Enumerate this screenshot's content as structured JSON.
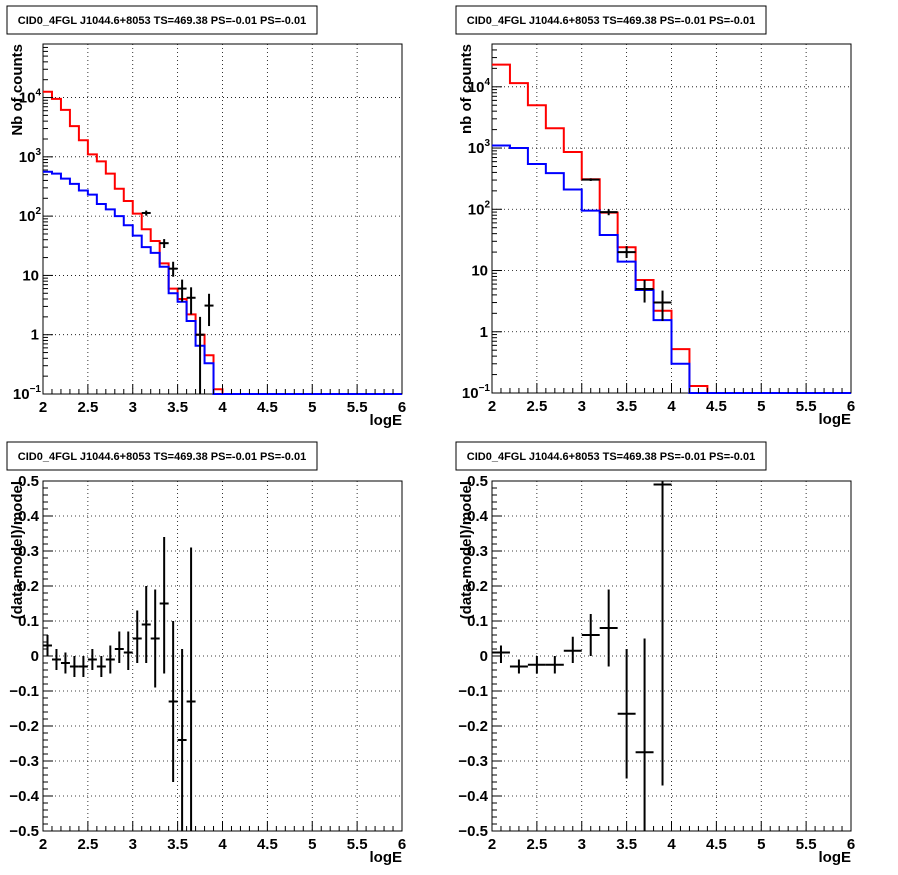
{
  "chart_data": [
    {
      "type": "line",
      "title": "CID0_4FGL J1044.6+8053 TS=469.38 PS=-0.01 PS=-0.01",
      "xlabel": "logE",
      "ylabel": "Nb of counts",
      "ylog": true,
      "xlim": [
        2,
        6
      ],
      "ylim": [
        0.1,
        80000
      ],
      "xticks": [
        "2",
        "2.5",
        "3",
        "3.5",
        "4",
        "4.5",
        "5",
        "5.5",
        "6"
      ],
      "yticks": [
        {
          "v": 0.1,
          "label": "10",
          "sup": "−1"
        },
        {
          "v": 1,
          "label": "1"
        },
        {
          "v": 10,
          "label": "10"
        },
        {
          "v": 100,
          "label": "10",
          "sup": "2"
        },
        {
          "v": 1000,
          "label": "10",
          "sup": "3"
        },
        {
          "v": 10000,
          "label": "10",
          "sup": "4"
        }
      ],
      "grid": true,
      "bin_edges": [
        2.0,
        2.1,
        2.2,
        2.3,
        2.4,
        2.5,
        2.6,
        2.7,
        2.8,
        2.9,
        3.0,
        3.1,
        3.2,
        3.3,
        3.4,
        3.5,
        3.6,
        3.7,
        3.8,
        3.9,
        4.0,
        4.1,
        4.2,
        4.3,
        4.4,
        4.5,
        4.6,
        4.7,
        4.8,
        4.9,
        5.0,
        5.1,
        5.2,
        5.3,
        5.4,
        5.5,
        5.6,
        5.7,
        5.8,
        5.9,
        6.0
      ],
      "series": [
        {
          "color": "#ff0000",
          "values": [
            12500,
            9500,
            6200,
            3300,
            1900,
            1100,
            840,
            520,
            290,
            180,
            110,
            60,
            38,
            16,
            6,
            4,
            2.2,
            1.0,
            0.45,
            0.12,
            0.09,
            0.09,
            0.09,
            0.09,
            0.09,
            0.09,
            0.09,
            0.09,
            0.09,
            0.09,
            0.09,
            0.09,
            0.09,
            0.09,
            0.09,
            0.09,
            0.09,
            0.09,
            0.09,
            0.09
          ]
        },
        {
          "color": "#0000ff",
          "values": [
            560,
            520,
            430,
            350,
            270,
            230,
            160,
            130,
            100,
            70,
            47,
            30,
            24,
            14,
            5,
            3.6,
            1.7,
            0.65,
            0.33,
            0.1,
            0.09,
            0.09,
            0.09,
            0.09,
            0.09,
            0.09,
            0.09,
            0.09,
            0.09,
            0.09,
            0.09,
            0.09,
            0.09,
            0.09,
            0.09,
            0.09,
            0.09,
            0.09,
            0.09,
            0.09
          ]
        }
      ],
      "points": [
        {
          "x": 3.15,
          "y": 113,
          "xerr": 0.05,
          "lo": 102,
          "hi": 124
        },
        {
          "x": 3.35,
          "y": 35,
          "xerr": 0.05,
          "lo": 29,
          "hi": 41
        },
        {
          "x": 3.45,
          "y": 13,
          "xerr": 0.05,
          "lo": 9.5,
          "hi": 17
        },
        {
          "x": 3.55,
          "y": 6,
          "xerr": 0.05,
          "lo": 3.6,
          "hi": 8.5
        },
        {
          "x": 3.65,
          "y": 4.2,
          "xerr": 0.05,
          "lo": 2.2,
          "hi": 6.3
        },
        {
          "x": 3.75,
          "y": 1.0,
          "xerr": 0.05,
          "lo": 0.1,
          "hi": 2.0
        },
        {
          "x": 3.85,
          "y": 3.1,
          "xerr": 0.05,
          "lo": 1.4,
          "hi": 4.9
        }
      ]
    },
    {
      "type": "line",
      "title": "CID0_4FGL J1044.6+8053 TS=469.38 PS=-0.01 PS=-0.01",
      "xlabel": "logE",
      "ylabel": "nb of counts",
      "ylog": true,
      "xlim": [
        2,
        6
      ],
      "ylim": [
        0.1,
        50000
      ],
      "xticks": [
        "2",
        "2.5",
        "3",
        "3.5",
        "4",
        "4.5",
        "5",
        "5.5",
        "6"
      ],
      "yticks": [
        {
          "v": 0.1,
          "label": "10",
          "sup": "−1"
        },
        {
          "v": 1,
          "label": "1"
        },
        {
          "v": 10,
          "label": "10"
        },
        {
          "v": 100,
          "label": "10",
          "sup": "2"
        },
        {
          "v": 1000,
          "label": "10",
          "sup": "3"
        },
        {
          "v": 10000,
          "label": "10",
          "sup": "4"
        }
      ],
      "grid": true,
      "bin_edges": [
        2.0,
        2.2,
        2.4,
        2.6,
        2.8,
        3.0,
        3.2,
        3.4,
        3.6,
        3.8,
        4.0,
        4.2,
        4.4,
        4.6,
        4.8,
        5.0,
        5.2,
        5.4,
        5.6,
        5.8,
        6.0
      ],
      "series": [
        {
          "color": "#ff0000",
          "values": [
            23000,
            11500,
            5000,
            2100,
            860,
            310,
            88,
            24,
            7,
            2.2,
            0.52,
            0.13,
            0.09,
            0.09,
            0.09,
            0.09,
            0.09,
            0.09,
            0.09,
            0.09
          ]
        },
        {
          "color": "#0000ff",
          "values": [
            1100,
            1000,
            550,
            390,
            210,
            95,
            38,
            14,
            4.8,
            1.55,
            0.3,
            0.09,
            0.09,
            0.09,
            0.09,
            0.09,
            0.09,
            0.09,
            0.09,
            0.09
          ]
        }
      ],
      "points": [
        {
          "x": 3.1,
          "y": 305,
          "xerr": 0.1,
          "lo": 290,
          "hi": 320
        },
        {
          "x": 3.3,
          "y": 90,
          "xerr": 0.1,
          "lo": 80,
          "hi": 100
        },
        {
          "x": 3.5,
          "y": 20,
          "xerr": 0.1,
          "lo": 16,
          "hi": 25
        },
        {
          "x": 3.7,
          "y": 5,
          "xerr": 0.1,
          "lo": 3,
          "hi": 7
        },
        {
          "x": 3.9,
          "y": 3,
          "xerr": 0.1,
          "lo": 1.5,
          "hi": 4.7
        }
      ]
    },
    {
      "type": "scatter",
      "title": "CID0_4FGL J1044.6+8053 TS=469.38 PS=-0.01 PS=-0.01",
      "xlabel": "logE",
      "ylabel": "(data-model)/model",
      "ylog": false,
      "xlim": [
        2,
        6
      ],
      "ylim": [
        -0.5,
        0.5
      ],
      "xticks": [
        "2",
        "2.5",
        "3",
        "3.5",
        "4",
        "4.5",
        "5",
        "5.5",
        "6"
      ],
      "yticks": [
        {
          "v": -0.5,
          "label": "−0.5"
        },
        {
          "v": -0.4,
          "label": "−0.4"
        },
        {
          "v": -0.3,
          "label": "−0.3"
        },
        {
          "v": -0.2,
          "label": "−0.2"
        },
        {
          "v": -0.1,
          "label": "−0.1"
        },
        {
          "v": 0,
          "label": "0"
        },
        {
          "v": 0.1,
          "label": "0.1"
        },
        {
          "v": 0.2,
          "label": "0.2"
        },
        {
          "v": 0.3,
          "label": "0.3"
        },
        {
          "v": 0.4,
          "label": "0.4"
        },
        {
          "v": 0.5,
          "label": "0.5"
        }
      ],
      "grid": true,
      "points": [
        {
          "x": 2.05,
          "y": 0.03,
          "xerr": 0.05,
          "lo": 0.0,
          "hi": 0.06
        },
        {
          "x": 2.15,
          "y": -0.01,
          "xerr": 0.05,
          "lo": -0.04,
          "hi": 0.02
        },
        {
          "x": 2.25,
          "y": -0.02,
          "xerr": 0.05,
          "lo": -0.05,
          "hi": 0.01
        },
        {
          "x": 2.35,
          "y": -0.03,
          "xerr": 0.05,
          "lo": -0.06,
          "hi": 0.0
        },
        {
          "x": 2.45,
          "y": -0.03,
          "xerr": 0.05,
          "lo": -0.06,
          "hi": 0.0
        },
        {
          "x": 2.55,
          "y": -0.01,
          "xerr": 0.05,
          "lo": -0.04,
          "hi": 0.02
        },
        {
          "x": 2.65,
          "y": -0.03,
          "xerr": 0.05,
          "lo": -0.06,
          "hi": 0.0
        },
        {
          "x": 2.75,
          "y": -0.01,
          "xerr": 0.05,
          "lo": -0.05,
          "hi": 0.03
        },
        {
          "x": 2.85,
          "y": 0.02,
          "xerr": 0.05,
          "lo": -0.02,
          "hi": 0.07
        },
        {
          "x": 2.95,
          "y": 0.01,
          "xerr": 0.05,
          "lo": -0.04,
          "hi": 0.07
        },
        {
          "x": 3.05,
          "y": 0.05,
          "xerr": 0.05,
          "lo": -0.02,
          "hi": 0.13
        },
        {
          "x": 3.15,
          "y": 0.09,
          "xerr": 0.05,
          "lo": -0.02,
          "hi": 0.2
        },
        {
          "x": 3.25,
          "y": 0.05,
          "xerr": 0.05,
          "lo": -0.09,
          "hi": 0.19
        },
        {
          "x": 3.35,
          "y": 0.15,
          "xerr": 0.05,
          "lo": -0.05,
          "hi": 0.34
        },
        {
          "x": 3.45,
          "y": -0.13,
          "xerr": 0.05,
          "lo": -0.36,
          "hi": 0.1
        },
        {
          "x": 3.55,
          "y": -0.24,
          "xerr": 0.05,
          "lo": -0.5,
          "hi": 0.02
        },
        {
          "x": 3.65,
          "y": -0.13,
          "xerr": 0.05,
          "lo": -0.5,
          "hi": 0.31
        }
      ]
    },
    {
      "type": "scatter",
      "title": "CID0_4FGL J1044.6+8053 TS=469.38 PS=-0.01 PS=-0.01",
      "xlabel": "logE",
      "ylabel": "(data-model)/model",
      "ylog": false,
      "xlim": [
        2,
        6
      ],
      "ylim": [
        -0.5,
        0.5
      ],
      "xticks": [
        "2",
        "2.5",
        "3",
        "3.5",
        "4",
        "4.5",
        "5",
        "5.5",
        "6"
      ],
      "yticks": [
        {
          "v": -0.5,
          "label": "−0.5"
        },
        {
          "v": -0.4,
          "label": "−0.4"
        },
        {
          "v": -0.3,
          "label": "−0.3"
        },
        {
          "v": -0.2,
          "label": "−0.2"
        },
        {
          "v": -0.1,
          "label": "−0.1"
        },
        {
          "v": 0,
          "label": "0"
        },
        {
          "v": 0.1,
          "label": "0.1"
        },
        {
          "v": 0.2,
          "label": "0.2"
        },
        {
          "v": 0.3,
          "label": "0.3"
        },
        {
          "v": 0.4,
          "label": "0.4"
        },
        {
          "v": 0.5,
          "label": "0.5"
        }
      ],
      "grid": true,
      "points": [
        {
          "x": 2.1,
          "y": 0.01,
          "xerr": 0.1,
          "lo": -0.02,
          "hi": 0.03
        },
        {
          "x": 2.3,
          "y": -0.03,
          "xerr": 0.1,
          "lo": -0.05,
          "hi": -0.01
        },
        {
          "x": 2.5,
          "y": -0.025,
          "xerr": 0.1,
          "lo": -0.05,
          "hi": 0.0
        },
        {
          "x": 2.7,
          "y": -0.025,
          "xerr": 0.1,
          "lo": -0.05,
          "hi": 0.0
        },
        {
          "x": 2.9,
          "y": 0.015,
          "xerr": 0.1,
          "lo": -0.02,
          "hi": 0.055
        },
        {
          "x": 3.1,
          "y": 0.06,
          "xerr": 0.1,
          "lo": 0.0,
          "hi": 0.12
        },
        {
          "x": 3.3,
          "y": 0.08,
          "xerr": 0.1,
          "lo": -0.03,
          "hi": 0.19
        },
        {
          "x": 3.5,
          "y": -0.165,
          "xerr": 0.1,
          "lo": -0.35,
          "hi": 0.02
        },
        {
          "x": 3.7,
          "y": -0.275,
          "xerr": 0.1,
          "lo": -0.5,
          "hi": 0.05
        },
        {
          "x": 3.9,
          "y": 0.49,
          "xerr": 0.1,
          "lo": -0.37,
          "hi": 0.5
        }
      ]
    }
  ]
}
